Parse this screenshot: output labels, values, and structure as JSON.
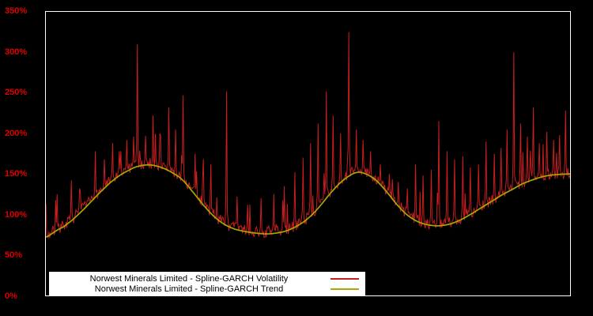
{
  "chart": {
    "y_axis": {
      "labels": [
        "350%",
        "300%",
        "250%",
        "200%",
        "150%",
        "100%",
        "50%",
        "0%"
      ]
    },
    "legend": [
      {
        "label": "Norwest Minerals Limited - Spline-GARCH Volatility",
        "color": "#c81e1e"
      },
      {
        "label": "Norwest Minerals Limited - Spline-GARCH Trend",
        "color": "#a8a800"
      }
    ]
  },
  "chart_data": {
    "type": "line",
    "title": "",
    "xlabel": "",
    "ylabel": "",
    "ylim_percent": [
      0,
      350
    ],
    "y_ticks_percent": [
      0,
      50,
      100,
      150,
      200,
      250,
      300,
      350
    ],
    "grid": false,
    "background": "#000000",
    "frame_color": "#ffffff",
    "axis_label_color": "#e00000",
    "legend_position": "bottom-center",
    "series": [
      {
        "name": "Norwest Minerals Limited - Spline-GARCH Volatility",
        "color": "#c81e1e",
        "style": "spiky"
      },
      {
        "name": "Norwest Minerals Limited - Spline-GARCH Trend",
        "color": "#a8a800",
        "style": "smooth"
      }
    ],
    "trend_points": [
      [
        0.0,
        72
      ],
      [
        0.02,
        80
      ],
      [
        0.04,
        88
      ],
      [
        0.07,
        105
      ],
      [
        0.1,
        125
      ],
      [
        0.13,
        143
      ],
      [
        0.16,
        155
      ],
      [
        0.18,
        160
      ],
      [
        0.2,
        161
      ],
      [
        0.22,
        158
      ],
      [
        0.24,
        152
      ],
      [
        0.26,
        143
      ],
      [
        0.28,
        128
      ],
      [
        0.3,
        112
      ],
      [
        0.32,
        98
      ],
      [
        0.34,
        88
      ],
      [
        0.36,
        82
      ],
      [
        0.38,
        79
      ],
      [
        0.4,
        77
      ],
      [
        0.42,
        76
      ],
      [
        0.44,
        77
      ],
      [
        0.46,
        80
      ],
      [
        0.48,
        86
      ],
      [
        0.5,
        95
      ],
      [
        0.52,
        108
      ],
      [
        0.54,
        124
      ],
      [
        0.56,
        138
      ],
      [
        0.58,
        148
      ],
      [
        0.595,
        152
      ],
      [
        0.61,
        150
      ],
      [
        0.63,
        142
      ],
      [
        0.65,
        128
      ],
      [
        0.67,
        112
      ],
      [
        0.69,
        99
      ],
      [
        0.71,
        91
      ],
      [
        0.73,
        87
      ],
      [
        0.75,
        86
      ],
      [
        0.77,
        88
      ],
      [
        0.79,
        93
      ],
      [
        0.81,
        100
      ],
      [
        0.83,
        108
      ],
      [
        0.85,
        116
      ],
      [
        0.87,
        124
      ],
      [
        0.89,
        131
      ],
      [
        0.91,
        138
      ],
      [
        0.93,
        143
      ],
      [
        0.95,
        147
      ],
      [
        0.97,
        149
      ],
      [
        1.0,
        150
      ]
    ],
    "spikes": [
      [
        0.022,
        125
      ],
      [
        0.048,
        142
      ],
      [
        0.065,
        132
      ],
      [
        0.095,
        178
      ],
      [
        0.112,
        168
      ],
      [
        0.128,
        188
      ],
      [
        0.143,
        178
      ],
      [
        0.155,
        192
      ],
      [
        0.168,
        196
      ],
      [
        0.175,
        310
      ],
      [
        0.19,
        197
      ],
      [
        0.205,
        222
      ],
      [
        0.218,
        200
      ],
      [
        0.235,
        232
      ],
      [
        0.248,
        205
      ],
      [
        0.262,
        247
      ],
      [
        0.285,
        175
      ],
      [
        0.3,
        168
      ],
      [
        0.315,
        162
      ],
      [
        0.345,
        252
      ],
      [
        0.365,
        122
      ],
      [
        0.385,
        112
      ],
      [
        0.41,
        120
      ],
      [
        0.435,
        125
      ],
      [
        0.455,
        135
      ],
      [
        0.475,
        152
      ],
      [
        0.49,
        170
      ],
      [
        0.505,
        188
      ],
      [
        0.52,
        212
      ],
      [
        0.535,
        252
      ],
      [
        0.548,
        222
      ],
      [
        0.562,
        200
      ],
      [
        0.578,
        325
      ],
      [
        0.592,
        205
      ],
      [
        0.605,
        192
      ],
      [
        0.62,
        178
      ],
      [
        0.638,
        162
      ],
      [
        0.655,
        150
      ],
      [
        0.672,
        140
      ],
      [
        0.69,
        132
      ],
      [
        0.705,
        162
      ],
      [
        0.72,
        148
      ],
      [
        0.735,
        155
      ],
      [
        0.75,
        215
      ],
      [
        0.765,
        178
      ],
      [
        0.78,
        168
      ],
      [
        0.795,
        172
      ],
      [
        0.81,
        158
      ],
      [
        0.825,
        162
      ],
      [
        0.84,
        190
      ],
      [
        0.855,
        175
      ],
      [
        0.868,
        182
      ],
      [
        0.88,
        205
      ],
      [
        0.892,
        300
      ],
      [
        0.905,
        212
      ],
      [
        0.918,
        196
      ],
      [
        0.93,
        232
      ],
      [
        0.942,
        188
      ],
      [
        0.955,
        202
      ],
      [
        0.968,
        192
      ],
      [
        0.98,
        198
      ],
      [
        0.992,
        228
      ]
    ],
    "noise": {
      "seed": 7,
      "samples": 700,
      "amplitude": 14,
      "minor_spike_prob": 0.08,
      "minor_spike_max": 42
    }
  }
}
